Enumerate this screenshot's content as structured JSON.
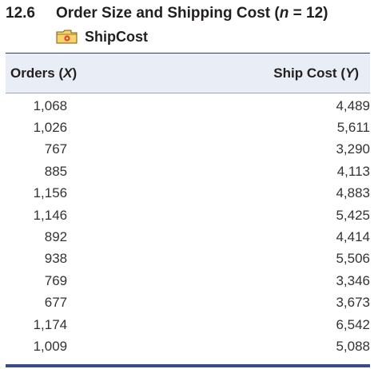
{
  "exercise": {
    "number": "12.6",
    "title_pre": "Order Size and Shipping Cost (",
    "n_symbol": "n",
    "title_post": " = 12)",
    "file_icon": "folder-data-icon",
    "file_name": "ShipCost"
  },
  "table": {
    "col_x_label": "Orders (",
    "col_x_var": "X",
    "col_y_label": "Ship Cost (",
    "col_y_var": "Y",
    "close_paren": ")",
    "rows": [
      {
        "orders": "1,068",
        "ship_cost": "4,489"
      },
      {
        "orders": "1,026",
        "ship_cost": "5,611"
      },
      {
        "orders": "767",
        "ship_cost": "3,290"
      },
      {
        "orders": "885",
        "ship_cost": "4,113"
      },
      {
        "orders": "1,156",
        "ship_cost": "4,883"
      },
      {
        "orders": "1,146",
        "ship_cost": "5,425"
      },
      {
        "orders": "892",
        "ship_cost": "4,414"
      },
      {
        "orders": "938",
        "ship_cost": "5,506"
      },
      {
        "orders": "769",
        "ship_cost": "3,346"
      },
      {
        "orders": "677",
        "ship_cost": "3,673"
      },
      {
        "orders": "1,174",
        "ship_cost": "6,542"
      },
      {
        "orders": "1,009",
        "ship_cost": "5,088"
      }
    ]
  },
  "colors": {
    "header_bg": "#e9edf5",
    "rule": "#3a4a8a",
    "icon_fill": "#f4c430"
  }
}
